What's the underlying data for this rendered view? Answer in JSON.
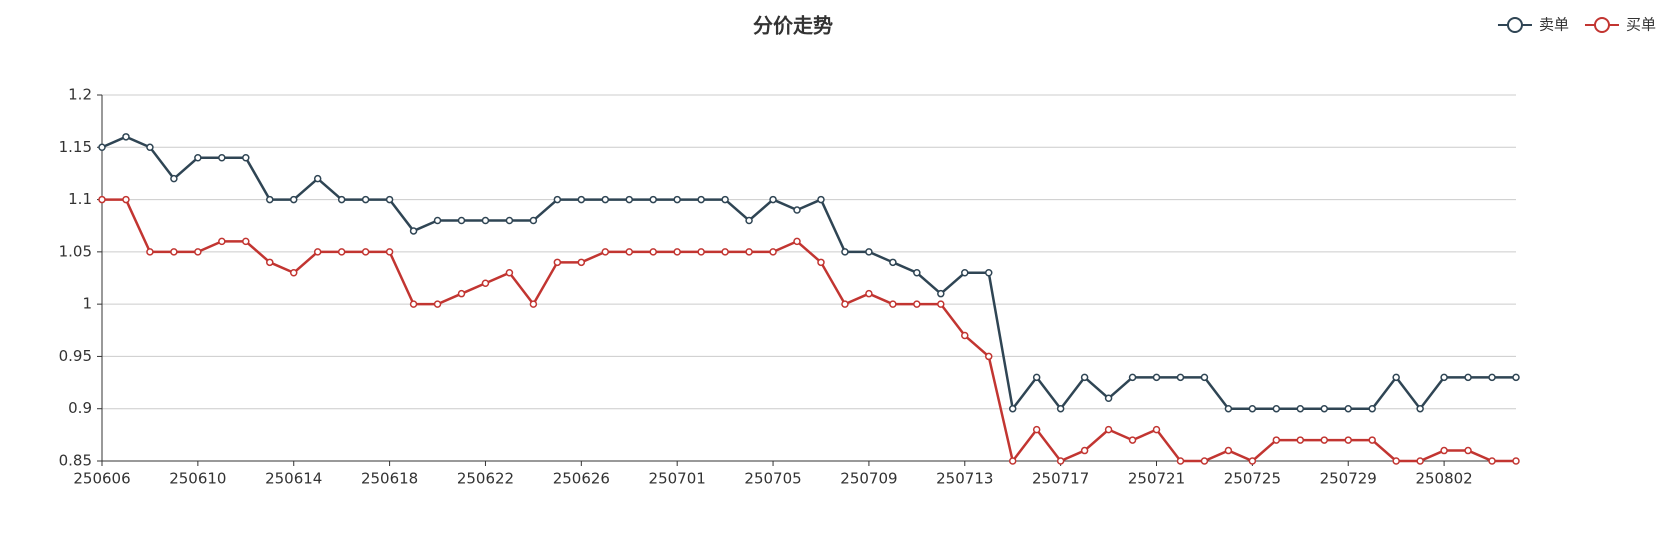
{
  "chart_data": {
    "type": "line",
    "title": "分价走势",
    "categories": [
      "250606",
      null,
      null,
      null,
      "250610",
      null,
      null,
      null,
      "250614",
      null,
      null,
      null,
      "250618",
      null,
      null,
      null,
      "250622",
      null,
      null,
      null,
      "250626",
      null,
      null,
      null,
      "250701",
      null,
      null,
      null,
      "250705",
      null,
      null,
      null,
      "250709",
      null,
      null,
      null,
      "250713",
      null,
      null,
      null,
      "250717",
      null,
      null,
      null,
      "250721",
      null,
      null,
      null,
      "250725",
      null,
      null,
      null,
      "250729",
      null,
      null,
      null,
      "250802",
      null,
      null,
      null
    ],
    "series": [
      {
        "name": "卖单",
        "color": "#2f4554",
        "values": [
          1.15,
          1.16,
          1.15,
          1.12,
          1.14,
          1.14,
          1.14,
          1.1,
          1.1,
          1.12,
          1.1,
          1.1,
          1.1,
          1.07,
          1.08,
          1.08,
          1.08,
          1.08,
          1.08,
          1.1,
          1.1,
          1.1,
          1.1,
          1.1,
          1.1,
          1.1,
          1.1,
          1.08,
          1.1,
          1.09,
          1.1,
          1.05,
          1.05,
          1.04,
          1.03,
          1.01,
          1.03,
          1.03,
          0.9,
          0.93,
          0.9,
          0.93,
          0.91,
          0.93,
          0.93,
          0.93,
          0.93,
          0.9,
          0.9,
          0.9,
          0.9,
          0.9,
          0.9,
          0.9,
          0.93,
          0.9,
          0.93,
          0.93,
          0.93,
          0.93
        ]
      },
      {
        "name": "买单",
        "color": "#c23531",
        "values": [
          1.1,
          1.1,
          1.05,
          1.05,
          1.05,
          1.06,
          1.06,
          1.04,
          1.03,
          1.05,
          1.05,
          1.05,
          1.05,
          1.0,
          1.0,
          1.01,
          1.02,
          1.03,
          1.0,
          1.04,
          1.04,
          1.05,
          1.05,
          1.05,
          1.05,
          1.05,
          1.05,
          1.05,
          1.05,
          1.06,
          1.04,
          1.0,
          1.01,
          1.0,
          1.0,
          1.0,
          0.97,
          0.95,
          0.85,
          0.88,
          0.85,
          0.86,
          0.88,
          0.87,
          0.88,
          0.85,
          0.85,
          0.86,
          0.85,
          0.87,
          0.87,
          0.87,
          0.87,
          0.87,
          0.85,
          0.85,
          0.86,
          0.86,
          0.85,
          0.85
        ]
      }
    ],
    "ylim": [
      0.85,
      1.2
    ],
    "yticks": [
      0.85,
      0.9,
      0.95,
      1,
      1.05,
      1.1,
      1.15,
      1.2
    ],
    "grid": true,
    "legend": "top-right"
  }
}
